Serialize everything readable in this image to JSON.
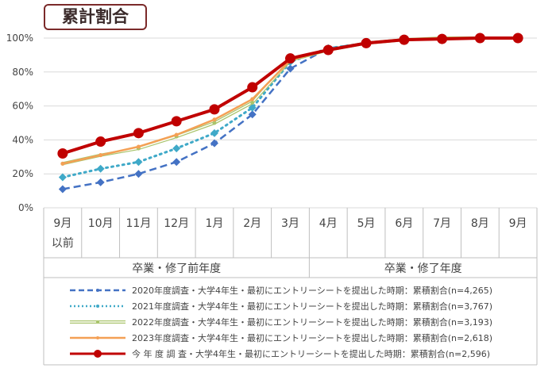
{
  "title": "累計割合",
  "chart_data": {
    "type": "line",
    "title": "累計割合",
    "categories": [
      "9月\n以前",
      "10月",
      "11月",
      "12月",
      "1月",
      "2月",
      "3月",
      "4月",
      "5月",
      "6月",
      "7月",
      "8月",
      "9月"
    ],
    "groups": [
      {
        "label": "卒業・修了前年度",
        "span": 7
      },
      {
        "label": "卒業・修了年度",
        "span": 6
      }
    ],
    "yticks": [
      "0%",
      "20%",
      "40%",
      "60%",
      "80%",
      "100%"
    ],
    "ylim": [
      0,
      100
    ],
    "grid": true,
    "legend": "bottom",
    "series": [
      {
        "name": "2020年度調査・大学4年生・最初にエントリーシートを提出した時期：累積割合(n=4,265)",
        "color": "#4472c4",
        "style": "dashed",
        "marker": "diamond",
        "values": [
          11,
          15,
          20,
          27,
          38,
          55,
          82,
          94,
          97,
          99,
          100,
          100,
          100
        ]
      },
      {
        "name": "2021年度調査・大学4年生・最初にエントリーシートを提出した時期：累積割合(n=3,767)",
        "color": "#3fa9c8",
        "style": "dotted",
        "marker": "diamond",
        "values": [
          18,
          23,
          27,
          35,
          44,
          59,
          86,
          94,
          97,
          99,
          100,
          100,
          100
        ]
      },
      {
        "name": "2022年度調査・大学4年生・最初にエントリーシートを提出した時期：累積割合(n=3,193)",
        "color": "#a9c46c",
        "style": "double",
        "marker": "small",
        "values": [
          26,
          31,
          35,
          42,
          50,
          62,
          87,
          93,
          97,
          99,
          100,
          100,
          100
        ]
      },
      {
        "name": "2023年度調査・大学4年生・最初にエントリーシートを提出した時期：累積割合(n=2,618)",
        "color": "#f4a055",
        "style": "solid",
        "marker": "small",
        "values": [
          26,
          31,
          36,
          43,
          52,
          64,
          87,
          93,
          97,
          99,
          100,
          100,
          100
        ]
      },
      {
        "name": "今 年 度 調 査・大学4年生・最初にエントリーシートを提出した時期：累積割合(n=2,596)",
        "color": "#c00000",
        "style": "solid-thick",
        "marker": "circle",
        "values": [
          32,
          39,
          44,
          51,
          58,
          71,
          88,
          93,
          97,
          99,
          99.5,
          100,
          100
        ]
      }
    ]
  }
}
